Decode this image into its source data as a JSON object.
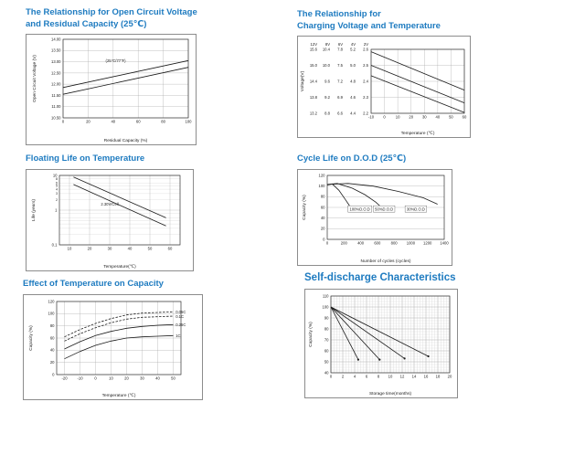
{
  "page": {
    "background": "#ffffff"
  },
  "colors": {
    "title": "#1e7bc0",
    "chart_border": "#8c8c8c",
    "plot_border": "#333333",
    "grid": "#a8a8a8",
    "grid_minor": "#d0d0d0",
    "line": "#1a1a1a"
  },
  "chart_data": [
    {
      "id": "ocv-vs-residual-capacity",
      "type": "line",
      "title_lines": [
        "The Relationship for Open Circuit Voltage",
        "and Residual Capacity (25℃)"
      ],
      "xlabel": "Residual Capacity (%)",
      "ylabel": "Open Circuit Voltage (V)",
      "x": {
        "min": 0,
        "max": 100,
        "ticks": [
          {
            "v": 0,
            "label": "0"
          },
          {
            "v": 20,
            "label": "20"
          },
          {
            "v": 40,
            "label": "40"
          },
          {
            "v": 60,
            "label": "60"
          },
          {
            "v": 80,
            "label": "80"
          },
          {
            "v": 100,
            "label": "100"
          }
        ]
      },
      "y": {
        "min": 10.5,
        "max": 14.0,
        "ticks": [
          {
            "v": 14.0,
            "label": "14.00"
          },
          {
            "v": 13.5,
            "label": "13.50"
          },
          {
            "v": 13.0,
            "label": "13.00"
          },
          {
            "v": 12.5,
            "label": "12.50"
          },
          {
            "v": 12.0,
            "label": "12.00"
          },
          {
            "v": 11.5,
            "label": "11.50"
          },
          {
            "v": 11.0,
            "label": "11.00"
          },
          {
            "v": 10.5,
            "label": "10.50"
          }
        ]
      },
      "grid": {
        "x": true,
        "y": true
      },
      "series": [
        {
          "name": "upper-line",
          "points": [
            [
              0,
              11.85
            ],
            [
              100,
              13.05
            ]
          ]
        },
        {
          "name": "lower-line",
          "points": [
            [
              0,
              11.55
            ],
            [
              100,
              12.75
            ]
          ]
        }
      ],
      "annotations": [
        {
          "x": 42,
          "y": 13.05,
          "text": "(25℃/77℉)"
        }
      ]
    },
    {
      "id": "charging-voltage-vs-temperature",
      "type": "line",
      "title_lines": [
        "The Relationship for",
        "Charging Voltage and Temperature"
      ],
      "xlabel": "Temperature (℃)",
      "ylabel": "Voltage(V)",
      "x": {
        "min": -10,
        "max": 60,
        "ticks": [
          {
            "v": -10,
            "label": "-10"
          },
          {
            "v": 0,
            "label": "0"
          },
          {
            "v": 10,
            "label": "10"
          },
          {
            "v": 20,
            "label": "20"
          },
          {
            "v": 30,
            "label": "30"
          },
          {
            "v": 40,
            "label": "40"
          },
          {
            "v": 50,
            "label": "50"
          },
          {
            "v": 60,
            "label": "60"
          }
        ]
      },
      "y": {
        "min": 2.2,
        "max": 2.6,
        "tick_columns": {
          "headers": [
            "12V",
            "8V",
            "6V",
            "4V",
            "2V"
          ],
          "row_values": [
            2.6,
            2.5,
            2.4,
            2.3,
            2.2
          ],
          "rows": [
            [
              "15.6",
              "10.4",
              "7.8",
              "5.2",
              "2.6"
            ],
            [
              "15.0",
              "10.0",
              "7.5",
              "5.0",
              "2.5"
            ],
            [
              "14.4",
              "9.6",
              "7.2",
              "4.8",
              "2.4"
            ],
            [
              "13.8",
              "9.2",
              "6.9",
              "4.6",
              "2.3"
            ],
            [
              "13.2",
              "8.8",
              "6.6",
              "4.4",
              "2.2"
            ]
          ]
        }
      },
      "grid": {
        "x": true,
        "y": true
      },
      "series": [
        {
          "name": "cycle-use-upper",
          "points": [
            [
              -10,
              2.585
            ],
            [
              60,
              2.345
            ]
          ]
        },
        {
          "name": "cycle-use-lower",
          "points": [
            [
              -10,
              2.5
            ],
            [
              60,
              2.265
            ]
          ]
        },
        {
          "name": "float-use",
          "points": [
            [
              -10,
              2.435
            ],
            [
              60,
              2.205
            ]
          ]
        }
      ],
      "annotations": []
    },
    {
      "id": "floating-life-on-temperature",
      "type": "line",
      "title_lines": [
        "Floating Life on Temperature"
      ],
      "xlabel": "Temperature(℃)",
      "ylabel": "Life (years)",
      "x": {
        "min": 5,
        "max": 65,
        "ticks": [
          {
            "v": 10,
            "label": "10"
          },
          {
            "v": 20,
            "label": "20"
          },
          {
            "v": 30,
            "label": "30"
          },
          {
            "v": 40,
            "label": "40"
          },
          {
            "v": 50,
            "label": "50"
          },
          {
            "v": 60,
            "label": "60"
          }
        ]
      },
      "y": {
        "min": 0.1,
        "max": 10,
        "scale": "log",
        "ticks": [
          {
            "v": 10,
            "label": "10"
          },
          {
            "v": 1,
            "label": "1"
          },
          {
            "v": 0.1,
            "label": "0.1"
          }
        ],
        "minor_ticks": [
          {
            "v": 8,
            "label": "8"
          },
          {
            "v": 6,
            "label": "6"
          },
          {
            "v": 5,
            "label": "5"
          },
          {
            "v": 4,
            "label": "4"
          },
          {
            "v": 3,
            "label": "3"
          },
          {
            "v": 2,
            "label": "2"
          },
          {
            "v": 0.8
          },
          {
            "v": 0.6
          },
          {
            "v": 0.5
          },
          {
            "v": 0.4
          },
          {
            "v": 0.3
          },
          {
            "v": 0.2
          }
        ]
      },
      "grid": {
        "x": true,
        "y": true
      },
      "series": [
        {
          "name": "life-upper",
          "points": [
            [
              12,
              9
            ],
            [
              58,
              0.6
            ]
          ]
        },
        {
          "name": "life-lower",
          "points": [
            [
              12,
              5.5
            ],
            [
              58,
              0.35
            ]
          ]
        }
      ],
      "annotations": [
        {
          "x": 30,
          "y": 1.5,
          "text": "2.30V/Cell"
        }
      ]
    },
    {
      "id": "cycle-life-on-dod",
      "type": "line",
      "title_lines": [
        "Cycle Life on D.O.D (25℃)"
      ],
      "xlabel": "Number of cycles (cycles)",
      "ylabel": "Capacity (%)",
      "x": {
        "min": 0,
        "max": 1400,
        "ticks": [
          {
            "v": 0,
            "label": "0"
          },
          {
            "v": 200,
            "label": "200"
          },
          {
            "v": 400,
            "label": "400"
          },
          {
            "v": 600,
            "label": "600"
          },
          {
            "v": 800,
            "label": "800"
          },
          {
            "v": 1000,
            "label": "1000"
          },
          {
            "v": 1200,
            "label": "1200"
          },
          {
            "v": 1400,
            "label": "1400"
          }
        ]
      },
      "y": {
        "min": 0,
        "max": 120,
        "ticks": [
          {
            "v": 120,
            "label": "120"
          },
          {
            "v": 100,
            "label": "100"
          },
          {
            "v": 80,
            "label": "80"
          },
          {
            "v": 60,
            "label": "60"
          },
          {
            "v": 40,
            "label": "40"
          },
          {
            "v": 20,
            "label": "20"
          },
          {
            "v": 0,
            "label": "0"
          }
        ]
      },
      "grid": {
        "x": false,
        "y": true
      },
      "series": [
        {
          "name": "dod-100",
          "points": [
            [
              0,
              102
            ],
            [
              60,
              104
            ],
            [
              140,
              92
            ],
            [
              220,
              74
            ],
            [
              280,
              60
            ],
            [
              310,
              53
            ]
          ]
        },
        {
          "name": "dod-50",
          "points": [
            [
              0,
              103
            ],
            [
              120,
              105
            ],
            [
              300,
              96
            ],
            [
              450,
              84
            ],
            [
              580,
              70
            ],
            [
              650,
              60
            ]
          ]
        },
        {
          "name": "dod-30",
          "points": [
            [
              0,
              103
            ],
            [
              250,
              105
            ],
            [
              550,
              100
            ],
            [
              850,
              90
            ],
            [
              1150,
              78
            ],
            [
              1320,
              66
            ]
          ]
        }
      ],
      "annotations": [
        {
          "x": 390,
          "y": 57,
          "text": "100%D.O.D",
          "boxed": true
        },
        {
          "x": 680,
          "y": 57,
          "text": "50%D.O.D",
          "boxed": true
        },
        {
          "x": 1060,
          "y": 57,
          "text": "30%D.O.D",
          "boxed": true
        }
      ]
    },
    {
      "id": "effect-of-temperature-on-capacity",
      "type": "line",
      "title_lines": [
        "Effect of Temperature on Capacity"
      ],
      "xlabel": "Temperature (℃)",
      "ylabel": "Capacity (%)",
      "x": {
        "min": -25,
        "max": 55,
        "ticks": [
          {
            "v": -20,
            "label": "-20"
          },
          {
            "v": -10,
            "label": "-10"
          },
          {
            "v": 0,
            "label": "0"
          },
          {
            "v": 10,
            "label": "10"
          },
          {
            "v": 20,
            "label": "20"
          },
          {
            "v": 30,
            "label": "30"
          },
          {
            "v": 40,
            "label": "40"
          },
          {
            "v": 50,
            "label": "50"
          }
        ]
      },
      "y": {
        "min": 0,
        "max": 120,
        "ticks": [
          {
            "v": 120,
            "label": "120"
          },
          {
            "v": 100,
            "label": "100"
          },
          {
            "v": 80,
            "label": "80"
          },
          {
            "v": 60,
            "label": "60"
          },
          {
            "v": 40,
            "label": "40"
          },
          {
            "v": 20,
            "label": "20"
          },
          {
            "v": 0,
            "label": "0"
          }
        ]
      },
      "grid": {
        "x": true,
        "y": true
      },
      "series": [
        {
          "name": "rate-0.05C",
          "dash": "2.5,1.5",
          "points": [
            [
              -20,
              62
            ],
            [
              -10,
              74
            ],
            [
              0,
              84
            ],
            [
              10,
              92
            ],
            [
              20,
              98
            ],
            [
              30,
              101
            ],
            [
              40,
              102
            ],
            [
              50,
              103
            ]
          ]
        },
        {
          "name": "rate-0.1C",
          "dash": "2.5,1.5",
          "points": [
            [
              -20,
              55
            ],
            [
              -10,
              67
            ],
            [
              0,
              77
            ],
            [
              10,
              85
            ],
            [
              20,
              91
            ],
            [
              30,
              94
            ],
            [
              40,
              95
            ],
            [
              50,
              96
            ]
          ]
        },
        {
          "name": "rate-0.25C",
          "points": [
            [
              -20,
              42
            ],
            [
              -10,
              54
            ],
            [
              0,
              64
            ],
            [
              10,
              71
            ],
            [
              20,
              76
            ],
            [
              30,
              79
            ],
            [
              40,
              81
            ],
            [
              50,
              82
            ]
          ]
        },
        {
          "name": "rate-1C",
          "points": [
            [
              -20,
              26
            ],
            [
              -10,
              38
            ],
            [
              0,
              48
            ],
            [
              10,
              55
            ],
            [
              20,
              60
            ],
            [
              30,
              62
            ],
            [
              40,
              63
            ],
            [
              50,
              64
            ]
          ]
        }
      ],
      "annotations": [
        {
          "x": 51,
          "y": 103,
          "text": "0.05C",
          "anchor": "start"
        },
        {
          "x": 51,
          "y": 95,
          "text": "0.1C",
          "anchor": "start"
        },
        {
          "x": 51,
          "y": 82,
          "text": "0.25C",
          "anchor": "start"
        },
        {
          "x": 51,
          "y": 64,
          "text": "1C",
          "anchor": "start"
        }
      ]
    },
    {
      "id": "self-discharge-characteristics",
      "type": "line",
      "title_lines": [
        "Self-discharge Characteristics"
      ],
      "xlabel": "Storage time(months)",
      "ylabel": "Capacity (%)",
      "x": {
        "min": 0,
        "max": 20,
        "minor_step": 0.5,
        "ticks": [
          {
            "v": 0,
            "label": "0"
          },
          {
            "v": 2,
            "label": "2"
          },
          {
            "v": 4,
            "label": "4"
          },
          {
            "v": 6,
            "label": "6"
          },
          {
            "v": 8,
            "label": "8"
          },
          {
            "v": 10,
            "label": "10"
          },
          {
            "v": 12,
            "label": "12"
          },
          {
            "v": 14,
            "label": "14"
          },
          {
            "v": 16,
            "label": "16"
          },
          {
            "v": 18,
            "label": "18"
          },
          {
            "v": 20,
            "label": "20"
          }
        ]
      },
      "y": {
        "min": 40,
        "max": 110,
        "minor_step": 2.5,
        "ticks": [
          {
            "v": 110,
            "label": "110"
          },
          {
            "v": 100,
            "label": "100"
          },
          {
            "v": 90,
            "label": "90"
          },
          {
            "v": 80,
            "label": "80"
          },
          {
            "v": 70,
            "label": "70"
          },
          {
            "v": 60,
            "label": "60"
          },
          {
            "v": 50,
            "label": "50"
          },
          {
            "v": 40,
            "label": "40"
          }
        ]
      },
      "grid": {
        "x": true,
        "y": true
      },
      "series": [
        {
          "name": "high-temp",
          "points": [
            [
              0,
              100
            ],
            [
              4.6,
              52
            ]
          ],
          "marker_end": true
        },
        {
          "name": "mid-high-temp",
          "points": [
            [
              0,
              100
            ],
            [
              8.2,
              52
            ]
          ],
          "marker_end": true
        },
        {
          "name": "mid-temp",
          "points": [
            [
              0,
              100
            ],
            [
              12.4,
              53
            ]
          ],
          "marker_end": true
        },
        {
          "name": "low-temp",
          "points": [
            [
              0,
              100
            ],
            [
              16.4,
              55
            ]
          ],
          "marker_end": true
        }
      ],
      "annotations": []
    }
  ]
}
